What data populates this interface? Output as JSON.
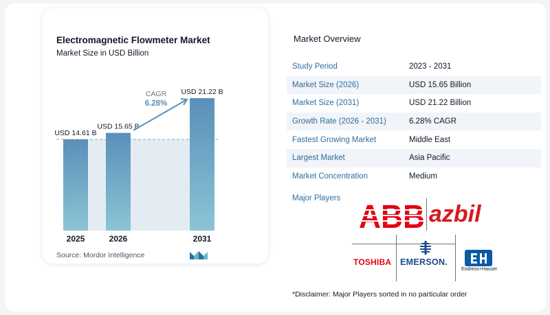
{
  "chart_data": {
    "type": "bar",
    "title": "Electromagnetic Flowmeter Market",
    "subtitle": "Market Size in USD Billion",
    "categories": [
      "2025",
      "2026",
      "2031"
    ],
    "values": [
      14.61,
      15.65,
      21.22
    ],
    "value_labels": [
      "USD 14.61 B",
      "USD 15.65 B",
      "USD 21.22 B"
    ],
    "cagr_label": "CAGR",
    "cagr_value": "6.28%",
    "xlabel": "",
    "ylabel": "",
    "ylim": [
      0,
      21.22
    ],
    "grid": false,
    "colors": {
      "bar_top": "#5b8fb9",
      "bar_bottom": "#8cc4d6",
      "shade": "#e4ecf3",
      "arrow": "#5b8fb9"
    }
  },
  "source": "Source:  Mordor Intelligence",
  "overview": {
    "title": "Market Overview",
    "rows": [
      {
        "key": "Study Period",
        "value": "2023 - 2031"
      },
      {
        "key": "Market Size (2026)",
        "value": "USD 15.65 Billion"
      },
      {
        "key": "Market Size (2031)",
        "value": "USD 21.22 Billion"
      },
      {
        "key": "Growth Rate (2026 - 2031)",
        "value": "6.28% CAGR"
      },
      {
        "key": "Fastest Growing Market",
        "value": "Middle East"
      },
      {
        "key": "Largest Market",
        "value": "Asia Pacific"
      },
      {
        "key": "Market Concentration",
        "value": "Medium"
      }
    ]
  },
  "players": {
    "title": "Major Players",
    "logos": {
      "abb": "ABB",
      "azbil": "azbil",
      "toshiba": "TOSHIBA",
      "emerson": "EMERSON.",
      "eh": "Endress+Hauser"
    }
  },
  "disclaimer": "*Disclaimer: Major Players sorted in no particular order"
}
